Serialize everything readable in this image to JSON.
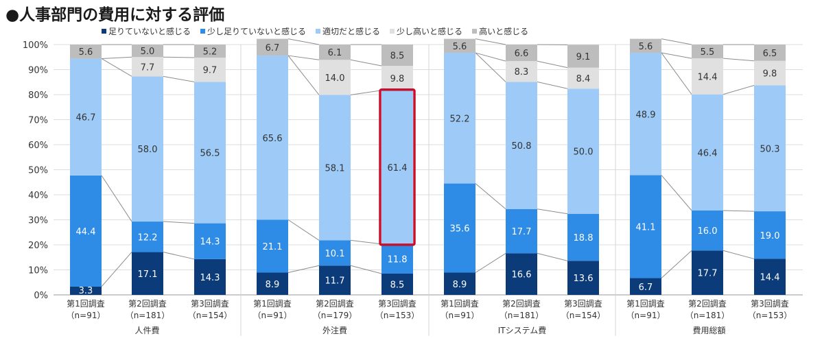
{
  "title": "●人事部門の費用に対する評価",
  "chart_data": {
    "type": "bar",
    "stacked": true,
    "ylim": [
      0,
      100
    ],
    "y_ticks": [
      "0%",
      "10%",
      "20%",
      "30%",
      "40%",
      "50%",
      "60%",
      "70%",
      "80%",
      "90%",
      "100%"
    ],
    "grid": true,
    "legend_position": "top",
    "series": [
      {
        "name": "足りていないと感じる",
        "color": "#0b3b78",
        "values": [
          3.3,
          17.1,
          14.3,
          8.9,
          11.7,
          8.5,
          8.9,
          16.6,
          13.6,
          6.7,
          17.7,
          14.4
        ]
      },
      {
        "name": "少し足りていないと感じる",
        "color": "#2e8be6",
        "values": [
          44.4,
          12.2,
          14.3,
          21.1,
          10.1,
          11.8,
          35.6,
          17.7,
          18.8,
          41.1,
          16.0,
          19.0
        ]
      },
      {
        "name": "適切だと感じる",
        "color": "#9dcaf6",
        "values": [
          46.7,
          58.0,
          56.5,
          65.6,
          58.1,
          61.4,
          52.2,
          50.8,
          50.0,
          48.9,
          46.4,
          50.3
        ]
      },
      {
        "name": "少し高いと感じる",
        "color": "#e0e0e0",
        "values": [
          0,
          7.7,
          9.7,
          0,
          14.0,
          9.8,
          0,
          8.3,
          8.4,
          0,
          14.4,
          9.8
        ]
      },
      {
        "name": "高いと感じる",
        "color": "#bdbdbd",
        "values": [
          5.6,
          5.0,
          5.2,
          6.7,
          6.1,
          8.5,
          5.6,
          6.6,
          9.1,
          5.6,
          5.5,
          6.5
        ]
      }
    ],
    "categories": [
      {
        "line1": "第1回調査",
        "line2": "（n=91）"
      },
      {
        "line1": "第2回調査",
        "line2": "（n=181）"
      },
      {
        "line1": "第3回調査",
        "line2": "（n=154）"
      },
      {
        "line1": "第1回調査",
        "line2": "（n=91）"
      },
      {
        "line1": "第2回調査",
        "line2": "（n=179）"
      },
      {
        "line1": "第3回調査",
        "line2": "（n=153）"
      },
      {
        "line1": "第1回調査",
        "line2": "（n=91）"
      },
      {
        "line1": "第2回調査",
        "line2": "（n=181）"
      },
      {
        "line1": "第3回調査",
        "line2": "（n=154）"
      },
      {
        "line1": "第1回調査",
        "line2": "（n=91）"
      },
      {
        "line1": "第2回調査",
        "line2": "（n=181）"
      },
      {
        "line1": "第3回調査",
        "line2": "（n=153）"
      }
    ],
    "groups": [
      "人件費",
      "外注費",
      "ITシステム費",
      "費用総額"
    ],
    "highlight": {
      "bar_index": 5,
      "series_index": 2,
      "color": "#c8102e"
    }
  }
}
